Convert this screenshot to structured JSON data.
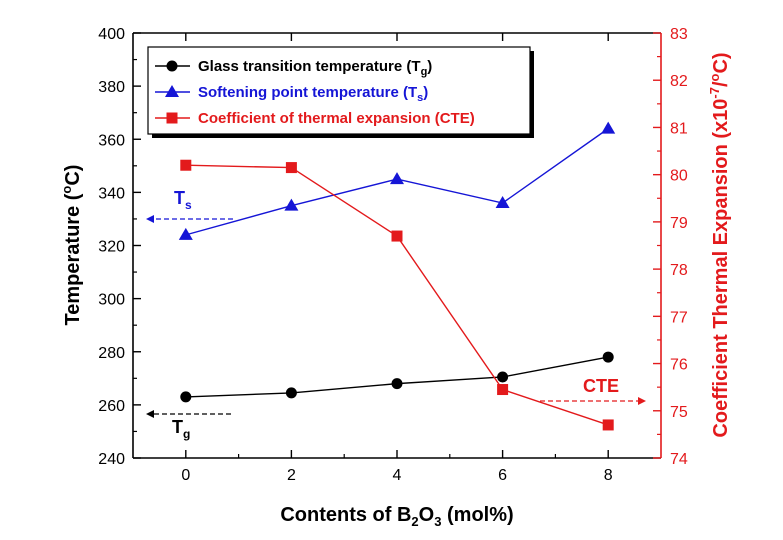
{
  "chart_data": {
    "type": "line",
    "x": [
      0,
      2,
      4,
      6,
      8
    ],
    "xlim": [
      -1,
      9
    ],
    "xticks": [
      "0",
      "2",
      "4",
      "6",
      "8"
    ],
    "xlabel": {
      "pre": "Contents of B",
      "sub": "2",
      "mid": "O",
      "sub2": "3",
      "post": " (mol%)"
    },
    "left_axis": {
      "label": {
        "pre": "Temperature (",
        "sup": "o",
        "post": "C)"
      },
      "ylim": [
        240,
        400
      ],
      "ticks": [
        "240",
        "260",
        "280",
        "300",
        "320",
        "340",
        "360",
        "380",
        "400"
      ],
      "color": "#000000"
    },
    "right_axis": {
      "label": {
        "pre": "Coefficient Thermal Expansion (x10",
        "sup": "-7",
        "mid": "/",
        "sup2": "o",
        "post": "C)"
      },
      "ylim": [
        74,
        83
      ],
      "ticks": [
        "74",
        "75",
        "76",
        "77",
        "78",
        "79",
        "80",
        "81",
        "82",
        "83"
      ],
      "color": "#e31a1c"
    },
    "series": [
      {
        "name": "Glass transition temperature (Tg)",
        "label_pre": "Glass transition temperature (T",
        "label_sub": "g",
        "label_post": ")",
        "axis": "left",
        "color": "#000000",
        "marker": "circle",
        "values": [
          263,
          264.5,
          268,
          270.5,
          278
        ]
      },
      {
        "name": "Softening point temperature (Ts)",
        "label_pre": "Softening point temperature (T",
        "label_sub": "s",
        "label_post": ")",
        "axis": "left",
        "color": "#1515d6",
        "marker": "triangle",
        "values": [
          324,
          335,
          345,
          336,
          364
        ]
      },
      {
        "name": "Coefficient of thermal expansion (CTE)",
        "label_pre": "Coefficient of thermal expansion (CTE)",
        "label_sub": "",
        "label_post": "",
        "axis": "right",
        "color": "#e31a1c",
        "marker": "square",
        "values": [
          80.2,
          80.15,
          78.7,
          75.45,
          74.7
        ]
      }
    ],
    "annotations": {
      "ts": {
        "pre": "T",
        "sub": "s",
        "color": "#1515d6"
      },
      "tg": {
        "pre": "T",
        "sub": "g",
        "color": "#000000"
      },
      "cte": {
        "text": "CTE",
        "color": "#e31a1c"
      }
    }
  }
}
